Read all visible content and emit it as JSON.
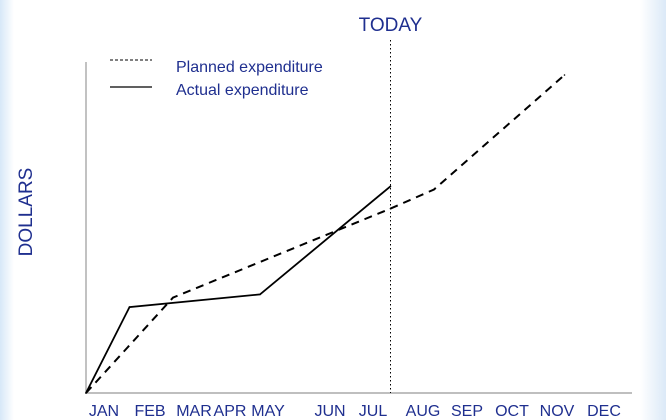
{
  "chart_data": {
    "type": "line",
    "title": "",
    "ylabel": "DOLLARS",
    "xlabel": "",
    "categories": [
      "JAN",
      "FEB",
      "MAR",
      "APR",
      "MAY",
      "JUN",
      "JUL",
      "AUG",
      "SEP",
      "OCT",
      "NOV",
      "DEC"
    ],
    "ylim": [
      0,
      100
    ],
    "grid": false,
    "legend_placement": "top-left",
    "series": [
      {
        "name": "Planned expenditure",
        "style": "dashed",
        "x": [
          "JAN",
          "MAR",
          "AUG",
          "SEP",
          "DEC"
        ],
        "values": [
          0,
          30,
          58,
          64,
          100
        ]
      },
      {
        "name": "Actual expenditure",
        "style": "solid",
        "x": [
          "JAN",
          "FEB",
          "MAY",
          "AUG"
        ],
        "values": [
          0,
          27,
          31,
          65
        ]
      }
    ],
    "annotations": [
      {
        "label": "TODAY",
        "x": "AUG",
        "style": "dotted vertical line"
      }
    ],
    "colors": {
      "text": "#1f2f8f",
      "lines": "#000000"
    }
  }
}
